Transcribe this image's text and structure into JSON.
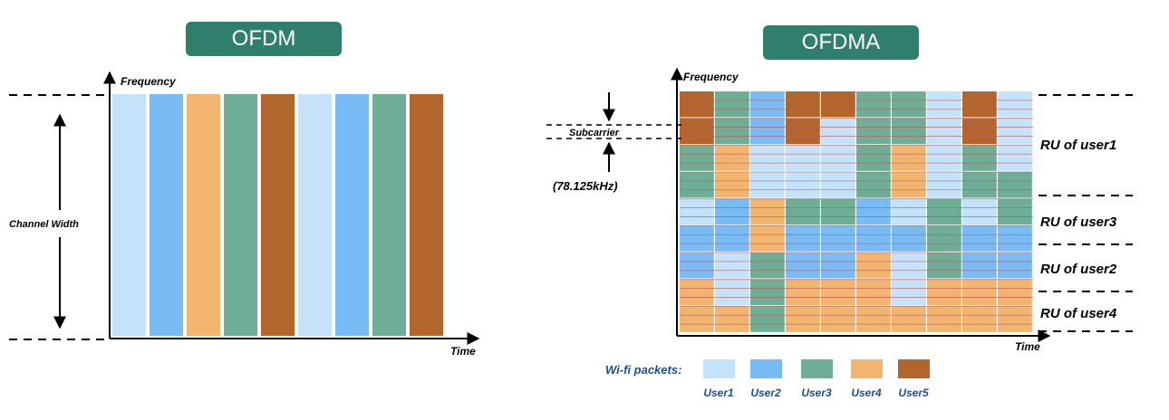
{
  "colors": {
    "user1": "#c4e2fa",
    "user2": "#78bbf5",
    "user3": "#6eae97",
    "user4": "#f2b570",
    "user5": "#b2662b",
    "badge": "#2f7f6c",
    "subcarrier_line": "#c05a5a"
  },
  "ofdm": {
    "badge": "OFDM",
    "y_axis": "Frequency",
    "x_axis": "Time",
    "span_label": "Channel Width",
    "slots": [
      "user1",
      "user2",
      "user4",
      "user3",
      "user5",
      "user1",
      "user2",
      "user3",
      "user5"
    ]
  },
  "ofdma": {
    "badge": "OFDMA",
    "y_axis": "Frequency",
    "x_axis": "Time",
    "subcarrier_label": "Subcarrier",
    "subcarrier_width": "(78.125kHz)",
    "ru_labels": [
      "RU of user1",
      "RU of user3",
      "RU of user2",
      "RU of user4"
    ],
    "grid": [
      [
        "user5",
        "user3",
        "user2",
        "user5",
        "user5",
        "user3",
        "user3",
        "user1",
        "user5",
        "user1"
      ],
      [
        "user5",
        "user3",
        "user2",
        "user5",
        "user1",
        "user3",
        "user3",
        "user1",
        "user5",
        "user1"
      ],
      [
        "user3",
        "user4",
        "user1",
        "user1",
        "user1",
        "user3",
        "user4",
        "user1",
        "user3",
        "user1"
      ],
      [
        "user3",
        "user4",
        "user1",
        "user1",
        "user1",
        "user3",
        "user4",
        "user1",
        "user3",
        "user3"
      ],
      [
        "user1",
        "user2",
        "user4",
        "user3",
        "user3",
        "user2",
        "user1",
        "user3",
        "user1",
        "user3"
      ],
      [
        "user2",
        "user2",
        "user4",
        "user2",
        "user2",
        "user2",
        "user2",
        "user3",
        "user2",
        "user2"
      ],
      [
        "user2",
        "user1",
        "user3",
        "user2",
        "user2",
        "user4",
        "user1",
        "user3",
        "user2",
        "user2"
      ],
      [
        "user4",
        "user1",
        "user3",
        "user4",
        "user4",
        "user4",
        "user1",
        "user4",
        "user4",
        "user4"
      ],
      [
        "user4",
        "user4",
        "user3",
        "user4",
        "user4",
        "user4",
        "user4",
        "user4",
        "user4",
        "user4"
      ]
    ]
  },
  "legend": {
    "title": "Wi-fi packets:",
    "items": [
      {
        "key": "user1",
        "label": "User1"
      },
      {
        "key": "user2",
        "label": "User2"
      },
      {
        "key": "user3",
        "label": "User3"
      },
      {
        "key": "user4",
        "label": "User4"
      },
      {
        "key": "user5",
        "label": "User5"
      }
    ]
  }
}
